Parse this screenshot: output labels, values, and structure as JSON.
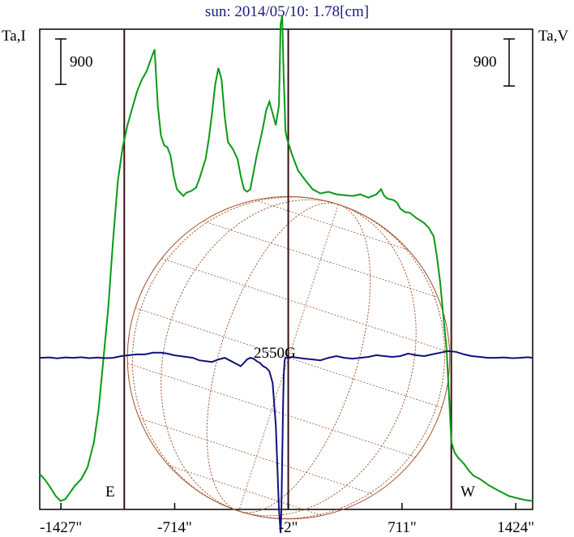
{
  "chart_data": {
    "type": "line",
    "title": "sun: 2014/05/10: 1.78[cm]",
    "left_axis_label": "Ta,I",
    "right_axis_label": "Ta,V",
    "left_scale_label": "900",
    "right_scale_label": "900",
    "scale_bar_value": 900,
    "annotation": "2550G",
    "east_label": "E",
    "west_label": "W",
    "xlim": [
      -1560,
      1530
    ],
    "ylim": [
      -900,
      1950
    ],
    "grid": false,
    "x_ticks": [
      {
        "value": -1427,
        "label": "-1427\""
      },
      {
        "value": -714,
        "label": "-714\""
      },
      {
        "value": -2,
        "label": "-2\""
      },
      {
        "value": 711,
        "label": "711\""
      },
      {
        "value": 1424,
        "label": "1424\""
      }
    ],
    "vertical_lines": [
      -1030,
      -2,
      1020
    ],
    "solar_disk": {
      "center_x": 0,
      "center_y": 0,
      "radius": 1010,
      "tilt_deg": 18
    },
    "colors": {
      "intensity": "#0a9a14",
      "polarization": "#101080",
      "disk": "#a0522d",
      "frame": "#000000",
      "vlines": "#3a1010",
      "title": "#1a1a80"
    },
    "series": [
      {
        "name": "Ta,I",
        "x": [
          -1560,
          -1530,
          -1500,
          -1460,
          -1430,
          -1400,
          -1370,
          -1340,
          -1300,
          -1260,
          -1220,
          -1190,
          -1160,
          -1130,
          -1100,
          -1070,
          -1040,
          -1010,
          -980,
          -950,
          -920,
          -890,
          -860,
          -840,
          -820,
          -800,
          -780,
          -760,
          -740,
          -720,
          -700,
          -680,
          -660,
          -640,
          -610,
          -580,
          -560,
          -540,
          -520,
          -500,
          -480,
          -460,
          -440,
          -420,
          -400,
          -380,
          -350,
          -320,
          -300,
          -280,
          -260,
          -240,
          -220,
          -200,
          -180,
          -160,
          -140,
          -120,
          -100,
          -80,
          -60,
          -50,
          -40,
          -30,
          -25,
          -20,
          -10,
          0,
          20,
          40,
          60,
          100,
          150,
          200,
          250,
          300,
          350,
          400,
          450,
          500,
          550,
          580,
          600,
          620,
          640,
          660,
          680,
          700,
          730,
          760,
          800,
          850,
          880,
          910,
          930,
          950,
          970,
          990,
          1010,
          1020,
          1040,
          1060,
          1080,
          1100,
          1130,
          1160,
          1200,
          1260,
          1320,
          1380,
          1440,
          1490,
          1530
        ],
        "y": [
          -690,
          -720,
          -760,
          -820,
          -850,
          -840,
          -800,
          -760,
          -720,
          -650,
          -500,
          -300,
          0,
          300,
          700,
          1050,
          1250,
          1380,
          1480,
          1580,
          1650,
          1700,
          1780,
          1830,
          1500,
          1320,
          1260,
          1250,
          1200,
          1080,
          1000,
          980,
          960,
          980,
          990,
          1010,
          1060,
          1120,
          1180,
          1300,
          1450,
          1620,
          1720,
          1650,
          1430,
          1280,
          1240,
          1180,
          1080,
          1000,
          985,
          1000,
          1100,
          1200,
          1280,
          1370,
          1470,
          1520,
          1450,
          1380,
          1500,
          1980,
          2030,
          1650,
          1520,
          1350,
          1300,
          1270,
          1210,
          1160,
          1110,
          1060,
          1000,
          975,
          985,
          970,
          965,
          960,
          970,
          950,
          970,
          1000,
          960,
          945,
          940,
          935,
          920,
          885,
          865,
          860,
          830,
          800,
          770,
          720,
          600,
          450,
          250,
          60,
          -300,
          -500,
          -560,
          -590,
          -610,
          -630,
          -670,
          -700,
          -720,
          -760,
          -790,
          -820,
          -835,
          -845,
          -850
        ]
      },
      {
        "name": "Ta,V",
        "x": [
          -1560,
          -1500,
          -1450,
          -1400,
          -1350,
          -1300,
          -1250,
          -1200,
          -1150,
          -1100,
          -1050,
          -1000,
          -950,
          -900,
          -850,
          -800,
          -760,
          -720,
          -680,
          -640,
          -600,
          -560,
          -520,
          -480,
          -440,
          -400,
          -360,
          -320,
          -300,
          -280,
          -260,
          -240,
          -220,
          -200,
          -180,
          -160,
          -140,
          -120,
          -100,
          -80,
          -60,
          -50,
          -45,
          -40,
          -35,
          -30,
          -25,
          -20,
          -10,
          0,
          20,
          60,
          100,
          150,
          200,
          250,
          300,
          350,
          400,
          450,
          500,
          550,
          600,
          650,
          700,
          750,
          800,
          850,
          900,
          950,
          1000,
          1050,
          1100,
          1150,
          1200,
          1250,
          1300,
          1350,
          1400,
          1450,
          1500,
          1530
        ],
        "y": [
          0,
          2,
          -3,
          2,
          0,
          3,
          -2,
          1,
          -2,
          0,
          10,
          15,
          20,
          20,
          30,
          30,
          25,
          15,
          10,
          5,
          0,
          -15,
          -20,
          -25,
          -10,
          0,
          -20,
          -40,
          -50,
          -30,
          -10,
          0,
          -5,
          -20,
          -30,
          -50,
          -60,
          -80,
          -150,
          -400,
          -900,
          -1040,
          -900,
          -600,
          -300,
          -100,
          -20,
          0,
          0,
          0,
          5,
          0,
          -5,
          -10,
          -15,
          0,
          10,
          0,
          -5,
          0,
          5,
          15,
          10,
          5,
          10,
          25,
          15,
          10,
          20,
          30,
          40,
          35,
          20,
          10,
          5,
          0,
          0,
          2,
          -2,
          0,
          3,
          0
        ]
      }
    ]
  }
}
